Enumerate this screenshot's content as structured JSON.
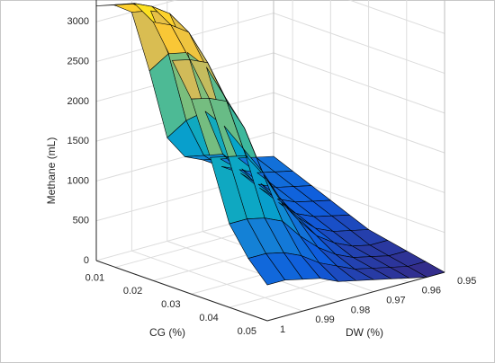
{
  "chart_data": {
    "type": "surface",
    "title": "",
    "zlabel": "Methane (mL)",
    "xlabel": "CG (%)",
    "ylabel": "DW (%)",
    "x_ticks": [
      "0.01",
      "0.02",
      "0.03",
      "0.04",
      "0.05"
    ],
    "y_ticks": [
      "0.95",
      "0.96",
      "0.97",
      "0.98",
      "0.99",
      "1"
    ],
    "z_ticks": [
      "0",
      "500",
      "1000",
      "1500",
      "2000",
      "2500",
      "3000"
    ],
    "xlim": [
      0.005,
      0.05
    ],
    "ylim": [
      0.95,
      1.0
    ],
    "zlim": [
      0,
      3500
    ],
    "grid": true,
    "colormap": "parula",
    "colormap_stops": [
      "#352a87",
      "#0f5cdd",
      "#1481d6",
      "#06a4ca",
      "#2eb7a4",
      "#87bf77",
      "#d1bb59",
      "#fec832",
      "#f9fb0e"
    ],
    "edge_color": "#000000",
    "surface_x": [
      0.005,
      0.01,
      0.015,
      0.02,
      0.025,
      0.03,
      0.035,
      0.04,
      0.045,
      0.05
    ],
    "surface_y": [
      0.95,
      0.955,
      0.96,
      0.965,
      0.97,
      0.975,
      0.98,
      0.985,
      0.99,
      0.995,
      1.0
    ],
    "surface_z": [
      [
        700,
        750,
        800,
        850,
        900,
        1000,
        1300,
        2200,
        3000,
        3150,
        3200
      ],
      [
        600,
        650,
        700,
        800,
        900,
        1100,
        1600,
        2500,
        3100,
        3250,
        3300
      ],
      [
        500,
        550,
        600,
        700,
        900,
        1200,
        1800,
        2600,
        3150,
        3300,
        3400
      ],
      [
        400,
        450,
        500,
        600,
        800,
        1100,
        1700,
        2500,
        3000,
        3150,
        3250
      ],
      [
        300,
        350,
        400,
        500,
        700,
        1000,
        1500,
        2200,
        2700,
        2800,
        2850
      ],
      [
        200,
        250,
        300,
        400,
        600,
        900,
        1300,
        1900,
        2300,
        2400,
        2450
      ],
      [
        150,
        150,
        200,
        300,
        450,
        700,
        1000,
        1400,
        1700,
        1750,
        1800
      ],
      [
        100,
        100,
        150,
        200,
        300,
        450,
        650,
        900,
        1000,
        1050,
        1050
      ],
      [
        50,
        50,
        100,
        150,
        200,
        300,
        400,
        550,
        650,
        700,
        700
      ],
      [
        0,
        0,
        50,
        100,
        150,
        200,
        250,
        350,
        400,
        450,
        450
      ]
    ]
  }
}
